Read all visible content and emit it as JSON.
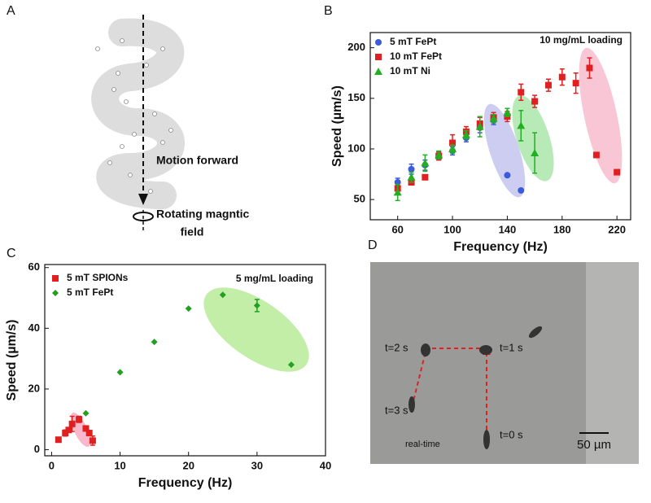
{
  "panel_labels": [
    "A",
    "B",
    "C",
    "D"
  ],
  "panel_a": {
    "motion_label": "Motion forward",
    "rotation_label": [
      "Rotating magntic",
      "field"
    ]
  },
  "panel_d": {
    "labels": [
      "t=2 s",
      "t=1 s",
      "t=3 s",
      "t=0 s"
    ],
    "caption": "real-time",
    "scale_bar": "50 µm"
  },
  "chart_data": [
    {
      "type": "scatter",
      "annotation": "10 mg/mL loading",
      "x_label": "Frequency (Hz)",
      "y_label": "Speed (µm/s)",
      "xlim": [
        40,
        230
      ],
      "ylim": [
        30,
        215
      ],
      "xticks": [
        60,
        100,
        140,
        180,
        220
      ],
      "yticks": [
        50,
        100,
        150,
        200
      ],
      "series": [
        {
          "name": "5 mT FePt",
          "color": "#3b5bdb",
          "marker": "circle",
          "x": [
            60,
            70,
            80,
            90,
            100,
            110,
            120,
            130,
            140,
            150
          ],
          "values": [
            67,
            80,
            84,
            93,
            98,
            111,
            121,
            128,
            74,
            59
          ],
          "errors": [
            4,
            5,
            5,
            4,
            4,
            4,
            5,
            4,
            null,
            null
          ]
        },
        {
          "name": "10 mT FePt",
          "color": "#e02020",
          "marker": "square",
          "x": [
            60,
            70,
            80,
            90,
            100,
            110,
            120,
            130,
            140,
            150,
            160,
            170,
            180,
            190,
            200,
            205,
            220
          ],
          "values": [
            61,
            67,
            72,
            93,
            106,
            117,
            125,
            131,
            132,
            156,
            147,
            163,
            171,
            165,
            180,
            94,
            77
          ],
          "errors": [
            null,
            null,
            null,
            4,
            8,
            5,
            6,
            5,
            5,
            8,
            6,
            6,
            8,
            10,
            10,
            null,
            null
          ]
        },
        {
          "name": "10 mT Ni",
          "color": "#22b022",
          "marker": "triangle",
          "x": [
            60,
            70,
            80,
            90,
            100,
            110,
            120,
            130,
            140,
            150,
            160
          ],
          "values": [
            57,
            72,
            86,
            94,
            100,
            114,
            122,
            130,
            136,
            123,
            96
          ],
          "errors": [
            8,
            5,
            8,
            4,
            4,
            4,
            10,
            4,
            4,
            15,
            20
          ]
        }
      ]
    },
    {
      "type": "scatter",
      "annotation": "5 mg/mL loading",
      "x_label": "Frequency (Hz)",
      "y_label": "Speed (µm/s)",
      "xlim": [
        -1,
        40
      ],
      "ylim": [
        -2,
        61
      ],
      "xticks": [
        0,
        10,
        20,
        30,
        40
      ],
      "yticks": [
        0,
        20,
        40,
        60
      ],
      "series": [
        {
          "name": "5 mT SPIONs",
          "color": "#e02020",
          "marker": "square",
          "x": [
            1,
            2,
            2.5,
            3,
            4,
            5,
            5.5,
            6
          ],
          "values": [
            3.3,
            5.5,
            6.5,
            8.5,
            10,
            7,
            5.5,
            3
          ],
          "errors": [
            null,
            1,
            null,
            2.5,
            1,
            null,
            null,
            1.5
          ]
        },
        {
          "name": "5 mT FePt",
          "color": "#22a022",
          "marker": "diamond",
          "x": [
            5,
            10,
            15,
            20,
            25,
            30,
            35
          ],
          "values": [
            12,
            25.5,
            35.5,
            46.5,
            51,
            47.5,
            28
          ],
          "errors": [
            null,
            null,
            null,
            null,
            null,
            2,
            null
          ]
        }
      ]
    }
  ]
}
